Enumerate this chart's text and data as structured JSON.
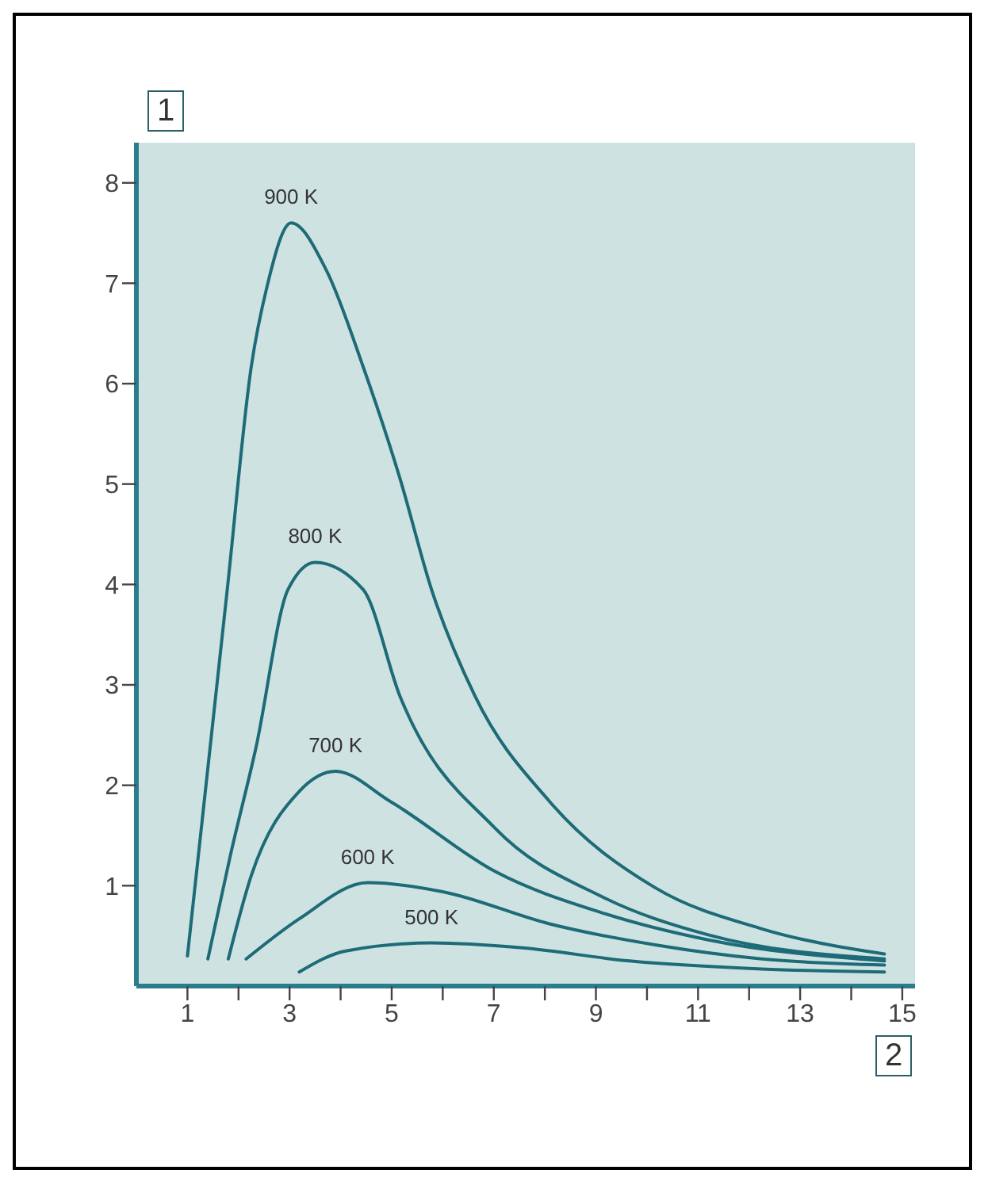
{
  "chart_data": {
    "type": "line",
    "xlabel": "2",
    "ylabel": "1",
    "xlim": [
      0,
      15.25
    ],
    "ylim": [
      0,
      8.4
    ],
    "xticks": [
      1,
      {
        "value": 2,
        "label": null
      },
      3,
      {
        "value": 4,
        "label": null
      },
      5,
      {
        "value": 6,
        "label": null
      },
      7,
      {
        "value": 8,
        "label": null
      },
      9,
      {
        "value": 10,
        "label": null
      },
      11,
      {
        "value": 12,
        "label": null
      },
      13,
      {
        "value": 14,
        "label": null
      },
      15
    ],
    "yticks": [
      1,
      2,
      3,
      4,
      5,
      6,
      7,
      8
    ],
    "marker": "none",
    "line_style": "solid",
    "series": [
      {
        "name": "900 K",
        "color": "#1e6b78",
        "x": [
          1.0,
          1.78,
          2.25,
          2.56,
          3.03,
          3.72,
          4.44,
          5.16,
          5.78,
          6.63,
          8.09,
          10.16,
          12.25,
          14.65
        ],
        "values": [
          0.3,
          3.95,
          6.17,
          6.97,
          7.6,
          7.13,
          6.17,
          5.06,
          3.95,
          2.89,
          1.84,
          0.98,
          0.57,
          0.32
        ]
      },
      {
        "name": "800 K",
        "color": "#1e6b78",
        "x": [
          1.4,
          1.84,
          2.34,
          2.97,
          3.5,
          4.44,
          5.16,
          7.03,
          9.12,
          11.2,
          14.65
        ],
        "values": [
          0.27,
          1.3,
          2.37,
          3.95,
          4.22,
          3.95,
          2.89,
          1.57,
          0.89,
          0.51,
          0.27
        ]
      },
      {
        "name": "700 K",
        "color": "#1e6b78",
        "x": [
          1.8,
          2.25,
          3.19,
          3.9,
          4.97,
          7.03,
          9.12,
          11.2,
          14.65
        ],
        "values": [
          0.27,
          1.1,
          1.94,
          2.14,
          1.84,
          1.14,
          0.73,
          0.46,
          0.25
        ]
      },
      {
        "name": "600 K",
        "color": "#1e6b78",
        "x": [
          2.15,
          3.19,
          4.53,
          6.0,
          8.09,
          10.16,
          12.25,
          14.65
        ],
        "values": [
          0.27,
          0.67,
          1.03,
          0.94,
          0.62,
          0.41,
          0.27,
          0.21
        ]
      },
      {
        "name": "500 K",
        "color": "#1e6b78",
        "x": [
          3.19,
          4.1,
          5.78,
          7.56,
          9.66,
          12.25,
          14.65
        ],
        "values": [
          0.14,
          0.35,
          0.43,
          0.38,
          0.25,
          0.17,
          0.14
        ]
      }
    ]
  }
}
